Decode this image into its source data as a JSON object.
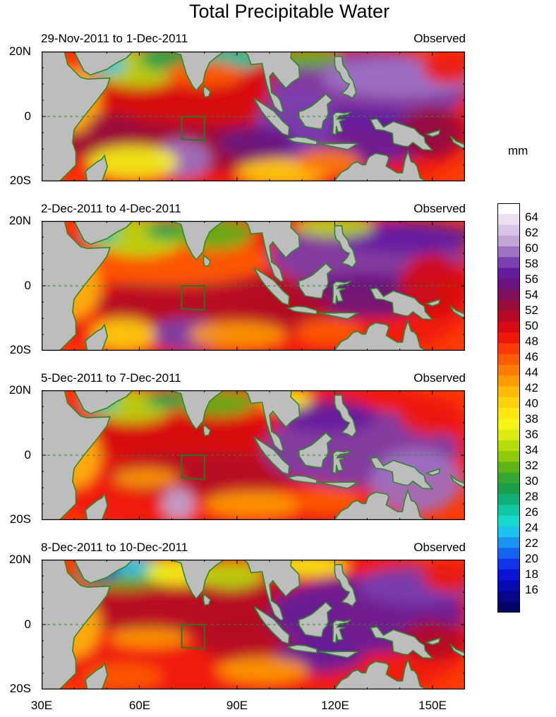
{
  "title": "Total Precipitable Water",
  "units": "mm",
  "panels": [
    {
      "date_range": "29-Nov-2011 to 1-Dec-2011",
      "label": "Observed"
    },
    {
      "date_range": "2-Dec-2011 to 4-Dec-2011",
      "label": "Observed"
    },
    {
      "date_range": "5-Dec-2011 to 7-Dec-2011",
      "label": "Observed"
    },
    {
      "date_range": "8-Dec-2011 to 10-Dec-2011",
      "label": "Observed"
    }
  ],
  "lat_ticks": [
    "20N",
    "0",
    "20S"
  ],
  "lon_ticks": [
    "30E",
    "60E",
    "90E",
    "120E",
    "150E"
  ],
  "map_extent": {
    "lon": [
      30,
      160
    ],
    "lat": [
      -20,
      20
    ]
  },
  "colorbar": {
    "range": [
      14,
      66
    ],
    "labels": [
      "64",
      "62",
      "60",
      "58",
      "56",
      "54",
      "52",
      "50",
      "48",
      "46",
      "44",
      "42",
      "40",
      "38",
      "36",
      "34",
      "32",
      "30",
      "28",
      "26",
      "24",
      "22",
      "20",
      "18",
      "16"
    ],
    "colors": [
      "#ffffff",
      "#eae0f0",
      "#d8c4e4",
      "#c2a6d6",
      "#9e73c4",
      "#7a3faf",
      "#641c9e",
      "#6a1380",
      "#7e0f5c",
      "#990d3b",
      "#b40a24",
      "#d50a12",
      "#ee1708",
      "#fb3a06",
      "#ff5c05",
      "#ff7d04",
      "#ff9c03",
      "#ffb908",
      "#ffd20e",
      "#ffe712",
      "#f7f514",
      "#dcec12",
      "#b6dc0e",
      "#8fca0a",
      "#5fb518",
      "#35a630",
      "#199e4a",
      "#0fb078",
      "#12c8a4",
      "#18d8cc",
      "#1ac4ef",
      "#1a94f0",
      "#1564f0",
      "#1034e8",
      "#0a12d4",
      "#070ab0",
      "#05068c",
      "#030466"
    ]
  },
  "colors": {
    "land": "#bdbdbd",
    "coastline": "#2c8a2c",
    "box": "#227a22"
  }
}
